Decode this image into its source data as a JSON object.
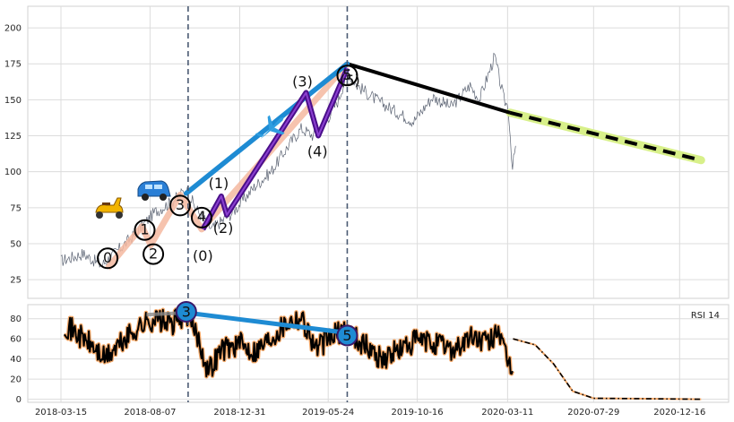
{
  "chart_data": [
    {
      "type": "line",
      "panel": "price",
      "title": "",
      "xlabel": "",
      "ylabel": "",
      "ylim": [
        12,
        215
      ],
      "yticks": [
        25,
        50,
        75,
        100,
        125,
        150,
        175,
        200
      ],
      "grid": true,
      "vlines": [
        "2018-10-08",
        "2019-06-24"
      ],
      "series": [
        {
          "role": "price",
          "color": "#5a6272",
          "anchors": [
            [
              "2018-03-15",
              38
            ],
            [
              "2018-04-20",
              43
            ],
            [
              "2018-05-20",
              35
            ],
            [
              "2018-06-15",
              45
            ],
            [
              "2018-07-10",
              55
            ],
            [
              "2018-08-15",
              72
            ],
            [
              "2018-09-15",
              80
            ],
            [
              "2018-10-05",
              88
            ],
            [
              "2018-10-20",
              75
            ],
            [
              "2018-11-15",
              60
            ],
            [
              "2018-12-20",
              72
            ],
            [
              "2019-01-25",
              90
            ],
            [
              "2019-02-20",
              100
            ],
            [
              "2019-03-20",
              118
            ],
            [
              "2019-04-10",
              130
            ],
            [
              "2019-04-30",
              125
            ],
            [
              "2019-05-20",
              135
            ],
            [
              "2019-06-10",
              150
            ],
            [
              "2019-06-24",
              170
            ],
            [
              "2019-07-10",
              160
            ],
            [
              "2019-08-10",
              150
            ],
            [
              "2019-09-10",
              142
            ],
            [
              "2019-10-10",
              135
            ],
            [
              "2019-11-10",
              152
            ],
            [
              "2019-12-10",
              145
            ],
            [
              "2020-01-10",
              160
            ],
            [
              "2020-01-25",
              150
            ],
            [
              "2020-02-19",
              180
            ],
            [
              "2020-03-05",
              150
            ],
            [
              "2020-03-12",
              145
            ],
            [
              "2020-03-19",
              102
            ],
            [
              "2020-03-24",
              118
            ]
          ]
        }
      ],
      "waves": [
        {
          "role": "primary-impulse",
          "color": "#f4b9a0",
          "points": [
            [
              "2018-05-30",
              33
            ],
            [
              "2018-07-25",
              62
            ],
            [
              "2018-08-08",
              49
            ],
            [
              "2018-09-25",
              84
            ],
            [
              "2018-10-30",
              60
            ],
            [
              "2019-06-24",
              175
            ]
          ],
          "labels": [
            "0",
            "1",
            "2",
            "3",
            "4",
            "5"
          ]
        },
        {
          "role": "sub-wave",
          "color": "#4a0f8a",
          "points": [
            [
              "2018-11-01",
              60
            ],
            [
              "2018-12-01",
              83
            ],
            [
              "2018-12-10",
              70
            ],
            [
              "2019-04-18",
              155
            ],
            [
              "2019-05-08",
              125
            ],
            [
              "2019-06-24",
              172
            ]
          ],
          "labels": [
            "(0)",
            "(1)",
            "(2)",
            "(3)",
            "(4)",
            "(5)"
          ]
        },
        {
          "role": "wave-3-to-5",
          "color": "#1e8bd3",
          "points": [
            [
              "2018-10-05",
              85
            ],
            [
              "2019-06-24",
              175
            ]
          ]
        },
        {
          "role": "projection",
          "color": "#000000",
          "highlight": "#d8f08a",
          "points": [
            [
              "2019-06-24",
              175
            ],
            [
              "2020-03-15",
              141
            ],
            [
              "2021-01-20",
              108
            ]
          ]
        }
      ],
      "icons": [
        "scooter-icon",
        "car-icon",
        "airplane-icon"
      ]
    },
    {
      "type": "line",
      "panel": "rsi",
      "legend": "RSI 14",
      "legend_position": "right",
      "title": "",
      "ylim": [
        -3,
        94
      ],
      "yticks": [
        0,
        20,
        40,
        60,
        80
      ],
      "grid": true,
      "xticks": [
        "2018-03-15",
        "2018-08-07",
        "2018-12-31",
        "2019-05-24",
        "2019-10-16",
        "2020-03-11",
        "2020-07-29",
        "2020-12-16"
      ],
      "series": [
        {
          "role": "rsi",
          "color": "#000000",
          "outline": "#f4a868",
          "anchors": [
            [
              "2018-03-20",
              75
            ],
            [
              "2018-04-10",
              65
            ],
            [
              "2018-05-01",
              55
            ],
            [
              "2018-05-25",
              40
            ],
            [
              "2018-06-25",
              58
            ],
            [
              "2018-07-20",
              72
            ],
            [
              "2018-08-15",
              80
            ],
            [
              "2018-09-10",
              74
            ],
            [
              "2018-10-05",
              86
            ],
            [
              "2018-10-25",
              60
            ],
            [
              "2018-11-10",
              28
            ],
            [
              "2018-12-01",
              50
            ],
            [
              "2018-12-31",
              55
            ],
            [
              "2019-01-25",
              48
            ],
            [
              "2019-02-20",
              62
            ],
            [
              "2019-03-20",
              78
            ],
            [
              "2019-04-10",
              82
            ],
            [
              "2019-05-05",
              50
            ],
            [
              "2019-05-24",
              60
            ],
            [
              "2019-06-24",
              70
            ],
            [
              "2019-07-20",
              55
            ],
            [
              "2019-08-20",
              40
            ],
            [
              "2019-09-20",
              50
            ],
            [
              "2019-10-16",
              58
            ],
            [
              "2019-11-15",
              55
            ],
            [
              "2019-12-15",
              50
            ],
            [
              "2020-01-15",
              62
            ],
            [
              "2020-02-10",
              55
            ],
            [
              "2020-02-25",
              72
            ],
            [
              "2020-03-05",
              45
            ],
            [
              "2020-03-19",
              28
            ]
          ]
        },
        {
          "role": "rsi-projection",
          "color": "#000000",
          "points": [
            [
              "2020-03-20",
              60
            ],
            [
              "2020-04-25",
              54
            ],
            [
              "2020-05-25",
              35
            ],
            [
              "2020-06-25",
              8
            ],
            [
              "2020-07-29",
              1
            ],
            [
              "2021-01-20",
              0
            ]
          ]
        },
        {
          "role": "rsi-wave",
          "color": "#1e8bd3",
          "points": [
            [
              "2018-10-05",
              86
            ],
            [
              "2019-06-24",
              66
            ]
          ],
          "labels": [
            "3",
            "5"
          ]
        },
        {
          "role": "rsi-reference",
          "color": "#8a8a8a",
          "points": [
            [
              "2018-08-01",
              84
            ],
            [
              "2018-10-05",
              86
            ]
          ]
        }
      ]
    }
  ]
}
